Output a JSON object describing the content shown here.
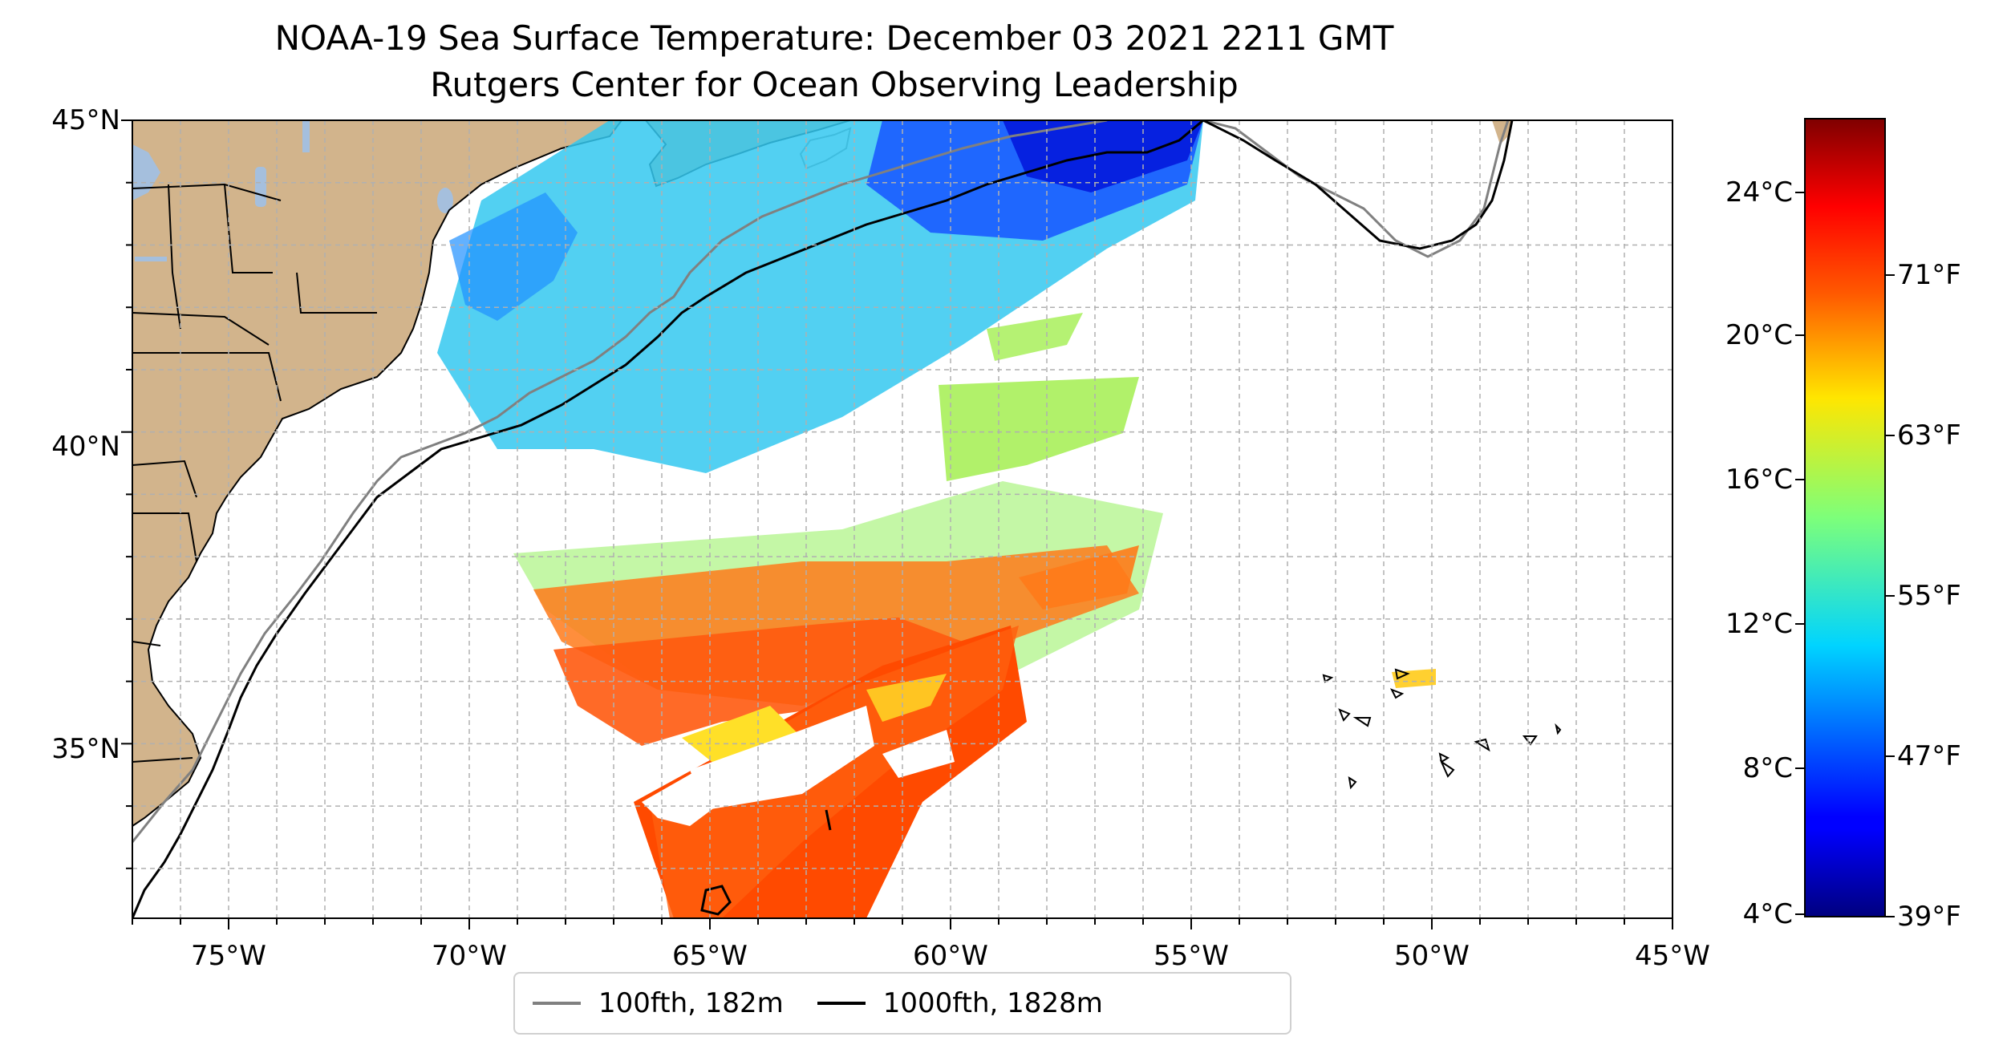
{
  "title": {
    "line1": "NOAA-19 Sea Surface Temperature: December 03 2021 2211 GMT",
    "line2": "Rutgers Center for Ocean Observing Leadership"
  },
  "map": {
    "lon_range": [
      -77,
      -45
    ],
    "lat_range": [
      32.2,
      45
    ],
    "lat_ticks": [
      {
        "value": 45,
        "label": "45°N"
      },
      {
        "value": 40,
        "label": "40°N"
      },
      {
        "value": 35,
        "label": "35°N"
      }
    ],
    "lon_ticks": [
      {
        "value": -75,
        "label": "75°W"
      },
      {
        "value": -70,
        "label": "70°W"
      },
      {
        "value": -65,
        "label": "65°W"
      },
      {
        "value": -60,
        "label": "60°W"
      },
      {
        "value": -55,
        "label": "55°W"
      },
      {
        "value": -50,
        "label": "50°W"
      },
      {
        "value": -45,
        "label": "45°W"
      }
    ],
    "grid": true,
    "land_color": "#d2b48c",
    "water_color": "#a5bfdd"
  },
  "colorbar": {
    "colormap": "jet",
    "celsius_ticks": [
      "24°C",
      "20°C",
      "16°C",
      "12°C",
      "8°C",
      "4°C"
    ],
    "fahrenheit_ticks": [
      "71°F",
      "63°F",
      "55°F",
      "47°F",
      "39°F"
    ]
  },
  "legend": {
    "items": [
      {
        "label": "100fth, 182m",
        "color": "#808080"
      },
      {
        "label": "1000fth, 1828m",
        "color": "#000000"
      }
    ]
  }
}
